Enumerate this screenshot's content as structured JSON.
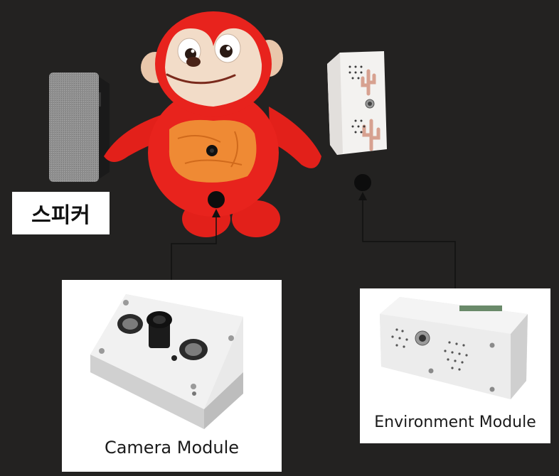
{
  "speaker_label": "스피커",
  "camera_module": {
    "caption": "Camera Module"
  },
  "environment_module": {
    "caption": "Environment Module"
  },
  "colors": {
    "background": "#232221",
    "doll_red": "#e8231d",
    "doll_face": "#f0d7c2",
    "belly_orange": "#ef8a34",
    "speaker_fabric": "#8e8e8e",
    "module_case": "#e7e7e7",
    "connector": "#111111"
  }
}
